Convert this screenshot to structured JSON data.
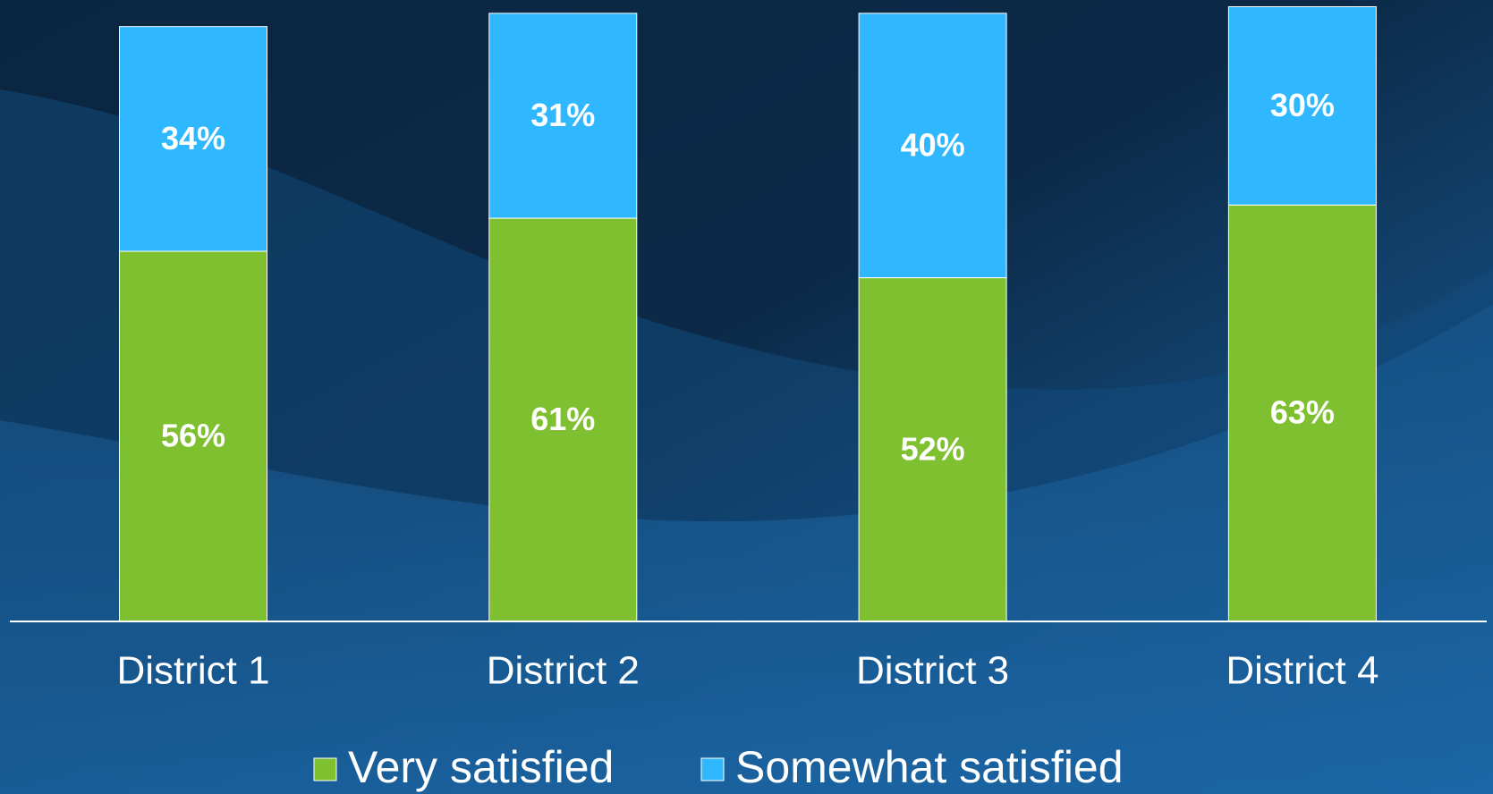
{
  "chart_data": {
    "type": "stacked-bar",
    "categories": [
      "District 1",
      "District 2",
      "District 3",
      "District 4"
    ],
    "series": [
      {
        "name": "Very satisfied",
        "color": "#7fc031",
        "values": [
          56,
          61,
          52,
          63
        ],
        "value_labels": [
          "56%",
          "61%",
          "52%",
          "63%"
        ]
      },
      {
        "name": "Somewhat satisfied",
        "color": "#2fb8ff",
        "values": [
          34,
          31,
          40,
          30
        ],
        "value_labels": [
          "34%",
          "31%",
          "40%",
          "30%"
        ]
      }
    ]
  }
}
